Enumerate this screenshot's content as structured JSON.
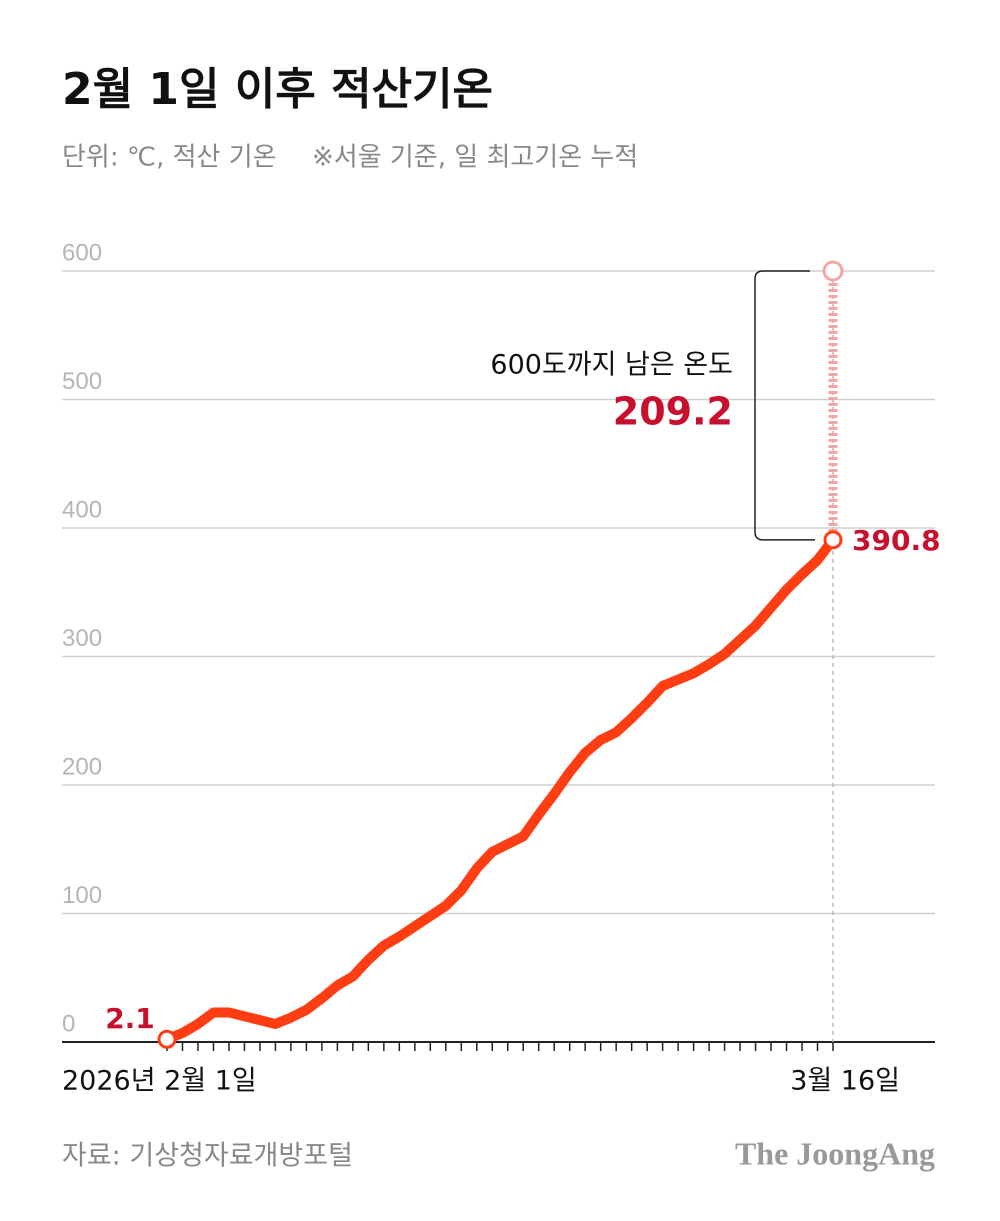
{
  "chart_data": {
    "type": "line",
    "title": "2월 1일 이후 적산기온",
    "subtitle": "단위: ℃, 적산 기온",
    "note": "※서울 기준, 일 최고기온 누적",
    "categories": [
      "2026년 2월 1일",
      null,
      null,
      null,
      null,
      null,
      null,
      null,
      null,
      null,
      null,
      null,
      null,
      null,
      null,
      null,
      null,
      null,
      null,
      null,
      null,
      null,
      null,
      null,
      null,
      null,
      null,
      null,
      null,
      null,
      null,
      null,
      null,
      null,
      null,
      null,
      null,
      null,
      null,
      null,
      null,
      null,
      null,
      "3월 16일"
    ],
    "series": [
      {
        "name": "적산기온",
        "color": "#ff3d12",
        "values": [
          2.1,
          7,
          14,
          23,
          23,
          20,
          17,
          14,
          19,
          25,
          34,
          44,
          51,
          64,
          75,
          82,
          90,
          98,
          106,
          118,
          135,
          148,
          154,
          160,
          177,
          193,
          210,
          225,
          235,
          241,
          252,
          264,
          277,
          282,
          287,
          294,
          302,
          313,
          324,
          338,
          352,
          364,
          375,
          390.8
        ]
      }
    ],
    "ylim": [
      0,
      600
    ],
    "yticks": [
      0,
      100,
      200,
      300,
      400,
      500,
      600
    ],
    "grid": true,
    "target": 600,
    "annotation": "600도까지 남은 온도",
    "remaining": 209.2,
    "label_color": "#c8102e",
    "target_color": "#f4a6a6",
    "source": "자료: 기상청자료개방포털",
    "brand": "The JoongAng"
  }
}
